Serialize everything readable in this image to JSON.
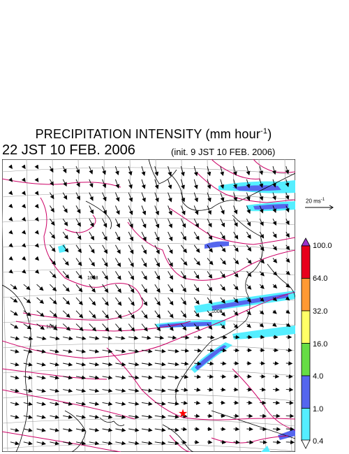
{
  "title": "PRECIPITATION INTENSITY (mm hour",
  "title_superscript": "-1",
  "title_end": ")",
  "timestamp": "22 JST 10 FEB. 2006",
  "init_text": "(init. 9 JST 10 FEB. 2006)",
  "vector_scale_label": "20 ms",
  "vector_scale_superscript": "-1",
  "isobar_labels": [
    "1008",
    "1004",
    "1008"
  ],
  "colorbar": {
    "labels": [
      "100.0",
      "64.0",
      "32.0",
      "16.0",
      "4.0",
      "1.0",
      "0.4"
    ],
    "colors": [
      "#9933cc",
      "#e8001c",
      "#ff9933",
      "#ffff66",
      "#66dd44",
      "#5566ee",
      "#55eeff",
      "#ffffff"
    ]
  },
  "colors": {
    "isobar": "#cc0066",
    "grid": "#999999",
    "coast": "#000000",
    "marker": "#ff0000"
  },
  "marker_icon": "red-star-icon"
}
